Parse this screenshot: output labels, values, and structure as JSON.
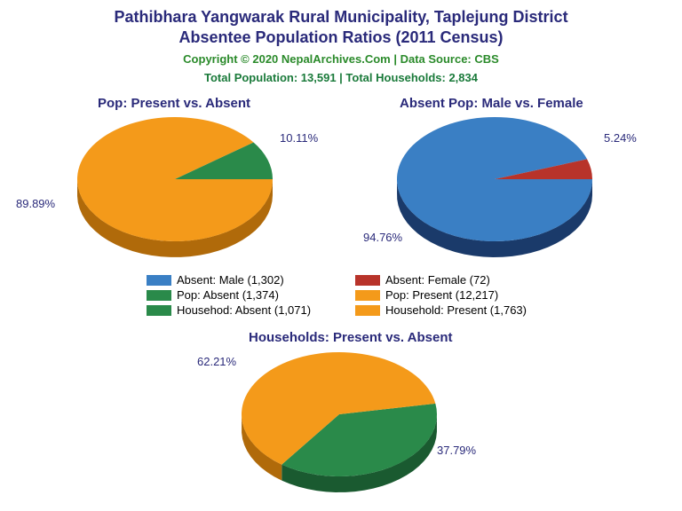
{
  "title_line1": "Pathibhara Yangwarak Rural Municipality, Taplejung District",
  "title_line2": "Absentee Population Ratios (2011 Census)",
  "copyright": "Copyright © 2020 NepalArchives.Com | Data Source: CBS",
  "totals": "Total Population: 13,591 | Total Households: 2,834",
  "colors": {
    "blue": "#3a7fc4",
    "blue_dark": "#1a3a6a",
    "red": "#b8332a",
    "red_dark": "#7a1f18",
    "green": "#2a8a4a",
    "green_dark": "#1a5a30",
    "orange": "#f49a1a",
    "orange_dark": "#b06a0a",
    "text_navy": "#2a2a7a"
  },
  "chart1": {
    "title": "Pop: Present vs. Absent",
    "slices": [
      {
        "label": "89.89%",
        "value": 89.89,
        "color": "#f49a1a",
        "side": "#b06a0a"
      },
      {
        "label": "10.11%",
        "value": 10.11,
        "color": "#2a8a4a",
        "side": "#1a5a30"
      }
    ]
  },
  "chart2": {
    "title": "Absent Pop: Male vs. Female",
    "slices": [
      {
        "label": "94.76%",
        "value": 94.76,
        "color": "#3a7fc4",
        "side": "#1a3a6a"
      },
      {
        "label": "5.24%",
        "value": 5.24,
        "color": "#b8332a",
        "side": "#7a1f18"
      }
    ]
  },
  "chart3": {
    "title": "Households: Present vs. Absent",
    "slices": [
      {
        "label": "62.21%",
        "value": 62.21,
        "color": "#f49a1a",
        "side": "#b06a0a"
      },
      {
        "label": "37.79%",
        "value": 37.79,
        "color": "#2a8a4a",
        "side": "#1a5a30"
      }
    ]
  },
  "legend": [
    {
      "color": "#3a7fc4",
      "label": "Absent: Male (1,302)"
    },
    {
      "color": "#b8332a",
      "label": "Absent: Female (72)"
    },
    {
      "color": "#2a8a4a",
      "label": "Pop: Absent (1,374)"
    },
    {
      "color": "#f49a1a",
      "label": "Pop: Present (12,217)"
    },
    {
      "color": "#2a8a4a",
      "label": "Househod: Absent (1,071)"
    },
    {
      "color": "#f49a1a",
      "label": "Household: Present (1,763)"
    }
  ]
}
